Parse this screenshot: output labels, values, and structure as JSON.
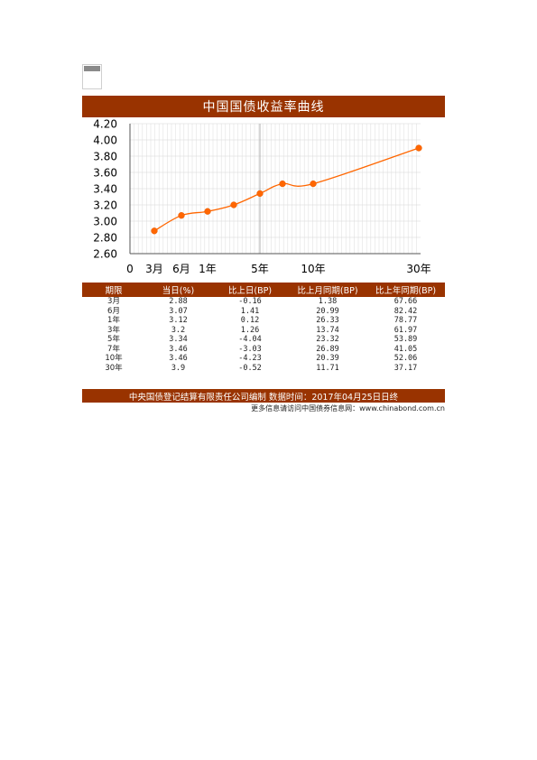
{
  "title": "中国国债收益率曲线",
  "chart_data": {
    "type": "line",
    "y_ticks": [
      "4.20",
      "4.00",
      "3.80",
      "3.60",
      "3.40",
      "3.20",
      "3.00",
      "2.80",
      "2.60"
    ],
    "x_ticks": [
      {
        "label": "0",
        "t": 0
      },
      {
        "label": "3月",
        "t": 0.25
      },
      {
        "label": "6月",
        "t": 0.5
      },
      {
        "label": "1年",
        "t": 1
      },
      {
        "label": "5年",
        "t": 5
      },
      {
        "label": "10年",
        "t": 10
      },
      {
        "label": "30年",
        "t": 30
      }
    ],
    "ylim": [
      2.6,
      4.2
    ],
    "x_scale": "custom-nonlinear",
    "grid": true,
    "points": [
      {
        "t": 0.25,
        "y": 2.88
      },
      {
        "t": 0.5,
        "y": 3.07
      },
      {
        "t": 1,
        "y": 3.12
      },
      {
        "t": 3,
        "y": 3.2
      },
      {
        "t": 5,
        "y": 3.34
      },
      {
        "t": 7,
        "y": 3.46
      },
      {
        "t": 10,
        "y": 3.46
      },
      {
        "t": 30,
        "y": 3.9
      }
    ],
    "color": "#ff6600"
  },
  "table": {
    "headers": [
      "期限",
      "当日(%)",
      "比上日(BP)",
      "比上月同期(BP)",
      "比上年同期(BP)"
    ],
    "rows": [
      [
        "3月",
        "2.88",
        "-0.16",
        "1.38",
        "67.66"
      ],
      [
        "6月",
        "3.07",
        "1.41",
        "20.99",
        "82.42"
      ],
      [
        "1年",
        "3.12",
        "0.12",
        "26.33",
        "78.77"
      ],
      [
        "3年",
        "3.2",
        "1.26",
        "13.74",
        "61.97"
      ],
      [
        "5年",
        "3.34",
        "-4.04",
        "23.32",
        "53.89"
      ],
      [
        "7年",
        "3.46",
        "-3.03",
        "26.89",
        "41.05"
      ],
      [
        "10年",
        "3.46",
        "-4.23",
        "20.39",
        "52.06"
      ],
      [
        "30年",
        "3.9",
        "-0.52",
        "11.71",
        "37.17"
      ]
    ]
  },
  "footer": "中央国债登记结算有限责任公司编制  数据时间：2017年04月25日日终",
  "footnote": "更多信息请访问中国债券信息网：www.chinabond.com.cn"
}
